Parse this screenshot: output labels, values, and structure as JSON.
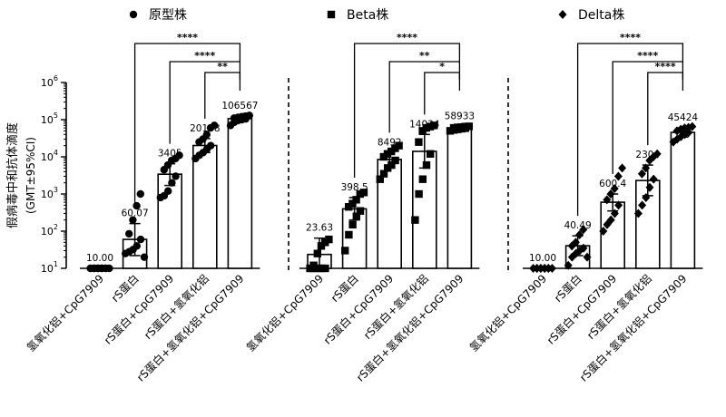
{
  "chart_data": {
    "type": "bar",
    "scale": "log10",
    "ylabel_line1": "假病毒中和抗体滴度",
    "ylabel_line2": "(GMT±95%CI)",
    "ylim": [
      10,
      1000000
    ],
    "y_ticks": [
      {
        "value": 10,
        "base": "10",
        "exp": "1"
      },
      {
        "value": 100,
        "base": "10",
        "exp": "2"
      },
      {
        "value": 1000,
        "base": "10",
        "exp": "3"
      },
      {
        "value": 10000,
        "base": "10",
        "exp": "4"
      },
      {
        "value": 100000,
        "base": "10",
        "exp": "5"
      },
      {
        "value": 1000000,
        "base": "10",
        "exp": "6"
      }
    ],
    "categories": [
      "氢氧化铝+CpG7909",
      "rS蛋白",
      "rS蛋白+CpG7909",
      "rS蛋白+氢氧化铝",
      "rS蛋白+氢氧化铝+CpG7909"
    ],
    "panels": [
      {
        "legend": "原型株",
        "marker": "circle",
        "bars": [
          {
            "value": 10,
            "label": "10.00",
            "ci": [
              10,
              10
            ],
            "points": [
              10,
              10,
              10,
              10,
              10,
              10,
              10,
              10,
              10,
              10
            ]
          },
          {
            "value": 60.07,
            "label": "60.07",
            "ci": [
              22,
              160
            ],
            "points": [
              25,
              28,
              32,
              40,
              60,
              85,
              200,
              480,
              1000,
              20
            ]
          },
          {
            "value": 3405,
            "label": "3405",
            "ci": [
              1700,
              6500
            ],
            "points": [
              800,
              900,
              1200,
              2000,
              3000,
              4500,
              6000,
              8000,
              9000,
              11000
            ]
          },
          {
            "value": 20168,
            "label": "20168",
            "ci": [
              13000,
              31000
            ],
            "points": [
              9000,
              11000,
              13000,
              16000,
              20000,
              25000,
              30000,
              40000,
              60000,
              70000
            ]
          },
          {
            "value": 106567,
            "label": "106567",
            "ci": [
              90000,
              125000
            ],
            "points": [
              70000,
              85000,
              95000,
              100000,
              105000,
              110000,
              115000,
              120000,
              125000,
              130000
            ]
          }
        ],
        "comparisons": [
          {
            "from": 1,
            "to": 4,
            "label": "****"
          },
          {
            "from": 2,
            "to": 4,
            "label": "****"
          },
          {
            "from": 3,
            "to": 4,
            "label": "**"
          }
        ]
      },
      {
        "legend": "Beta株",
        "marker": "square",
        "bars": [
          {
            "value": 23.63,
            "label": "23.63",
            "ci": [
              10,
              65
            ],
            "points": [
              10,
              10,
              10,
              10,
              10,
              12,
              25,
              40,
              50,
              60
            ]
          },
          {
            "value": 398.5,
            "label": "398.5",
            "ci": [
              200,
              800
            ],
            "points": [
              30,
              80,
              150,
              250,
              350,
              450,
              550,
              700,
              1000,
              1100
            ]
          },
          {
            "value": 8492,
            "label": "8492",
            "ci": [
              5500,
              13000
            ],
            "points": [
              2500,
              3500,
              5000,
              6000,
              8000,
              10000,
              12000,
              14000,
              17000,
              20000
            ]
          },
          {
            "value": 14034,
            "label": "14034",
            "ci": [
              5000,
              40000
            ],
            "points": [
              200,
              1000,
              2500,
              6000,
              12000,
              25000,
              50000,
              60000,
              65000,
              70000
            ]
          },
          {
            "value": 58933,
            "label": "58933",
            "ci": [
              52000,
              66000
            ],
            "points": [
              50000,
              53000,
              55000,
              57000,
              59000,
              60000,
              62000,
              63000,
              65000,
              66000
            ]
          }
        ],
        "comparisons": [
          {
            "from": 1,
            "to": 4,
            "label": "****"
          },
          {
            "from": 2,
            "to": 4,
            "label": "**"
          },
          {
            "from": 3,
            "to": 4,
            "label": "*"
          }
        ]
      },
      {
        "legend": "Delta株",
        "marker": "diamond",
        "bars": [
          {
            "value": 10,
            "label": "10.00",
            "ci": [
              10,
              10
            ],
            "points": [
              10,
              10,
              10,
              10,
              10,
              10,
              10,
              10,
              10,
              10
            ]
          },
          {
            "value": 40.49,
            "label": "40.49",
            "ci": [
              22,
              75
            ],
            "points": [
              12,
              20,
              25,
              30,
              35,
              40,
              50,
              80,
              110,
              20
            ]
          },
          {
            "value": 600.4,
            "label": "600.4",
            "ci": [
              350,
              1000
            ],
            "points": [
              100,
              150,
              200,
              300,
              500,
              700,
              1000,
              1400,
              3000,
              5000
            ]
          },
          {
            "value": 2304,
            "label": "2304",
            "ci": [
              900,
              6000
            ],
            "points": [
              300,
              500,
              800,
              1500,
              2500,
              3500,
              5000,
              8000,
              10000,
              12000
            ]
          },
          {
            "value": 45424,
            "label": "45424",
            "ci": [
              34000,
              60000
            ],
            "points": [
              25000,
              30000,
              35000,
              40000,
              45000,
              50000,
              55000,
              60000,
              62000,
              65000
            ]
          }
        ],
        "comparisons": [
          {
            "from": 1,
            "to": 4,
            "label": "****"
          },
          {
            "from": 2,
            "to": 4,
            "label": "****"
          },
          {
            "from": 3,
            "to": 4,
            "label": "****"
          }
        ]
      }
    ]
  }
}
